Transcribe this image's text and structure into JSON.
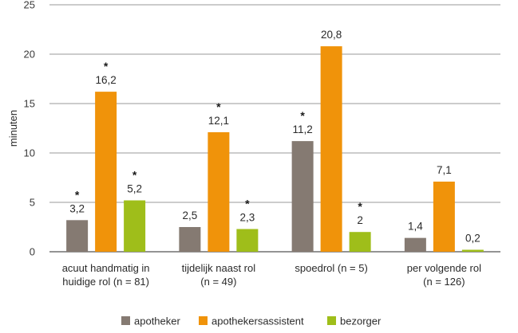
{
  "chart_data": {
    "type": "bar",
    "ylabel": "minuten",
    "ylim": [
      0,
      25
    ],
    "yticks": [
      0,
      5,
      10,
      15,
      20,
      25
    ],
    "grid": true,
    "legend_position": "bottom",
    "categories": [
      [
        "acuut handmatig in",
        "huidige rol (n = 81)"
      ],
      [
        "tijdelijk naast rol",
        "(n = 49)"
      ],
      [
        "spoedrol (n = 5)"
      ],
      [
        "per volgende rol",
        "(n = 126)"
      ]
    ],
    "series": [
      {
        "name": "apotheker",
        "color": "#857a72",
        "values": [
          3.2,
          2.5,
          11.2,
          1.4
        ],
        "labels": [
          "3,2",
          "2,5",
          "11,2",
          "1,4"
        ],
        "significant": [
          true,
          false,
          true,
          false
        ]
      },
      {
        "name": "apothekersassistent",
        "color": "#f0930a",
        "values": [
          16.2,
          12.1,
          20.8,
          7.1
        ],
        "labels": [
          "16,2",
          "12,1",
          "20,8",
          "7,1"
        ],
        "significant": [
          true,
          true,
          false,
          false
        ]
      },
      {
        "name": "bezorger",
        "color": "#9fbe1a",
        "values": [
          5.2,
          2.3,
          2,
          0.2
        ],
        "labels": [
          "5,2",
          "2,3",
          "2",
          "0,2"
        ],
        "significant": [
          true,
          true,
          true,
          false
        ]
      }
    ],
    "significance_marker": "*"
  }
}
